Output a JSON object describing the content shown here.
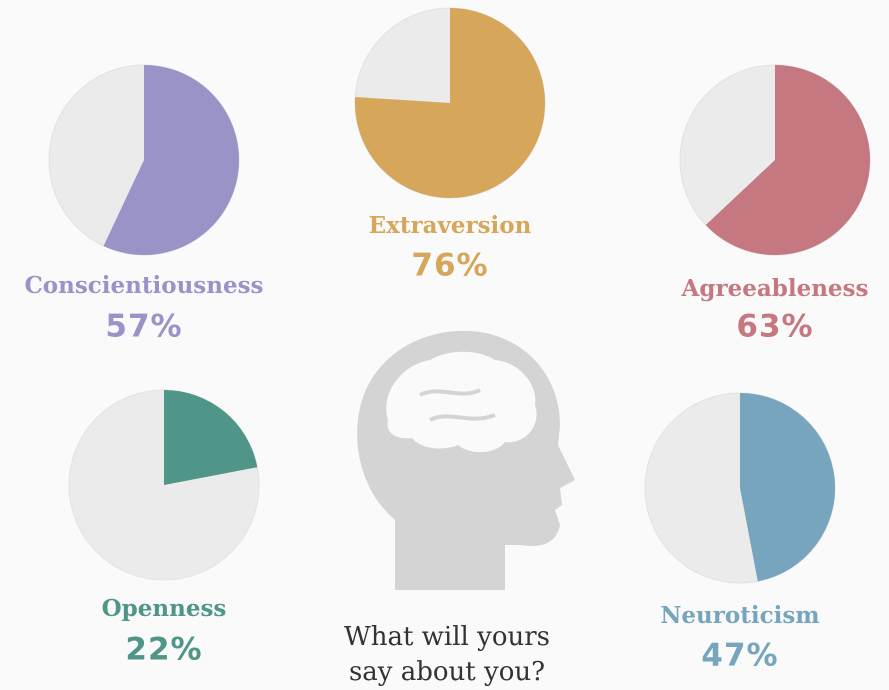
{
  "chart_data": [
    {
      "type": "pie",
      "title": "Conscientiousness",
      "values": [
        57
      ],
      "value_labels": [
        "57%"
      ],
      "color": "#9a93c8"
    },
    {
      "type": "pie",
      "title": "Extraversion",
      "values": [
        76
      ],
      "value_labels": [
        "76%"
      ],
      "color": "#d6a75a"
    },
    {
      "type": "pie",
      "title": "Agreeableness",
      "values": [
        63
      ],
      "value_labels": [
        "63%"
      ],
      "color": "#c67880"
    },
    {
      "type": "pie",
      "title": "Openness",
      "values": [
        22
      ],
      "value_labels": [
        "22%"
      ],
      "color": "#4f9588"
    },
    {
      "type": "pie",
      "title": "Neuroticism",
      "values": [
        47
      ],
      "value_labels": [
        "47%"
      ],
      "color": "#76a5bd"
    }
  ],
  "caption": [
    "What will yours",
    "say about you?"
  ]
}
